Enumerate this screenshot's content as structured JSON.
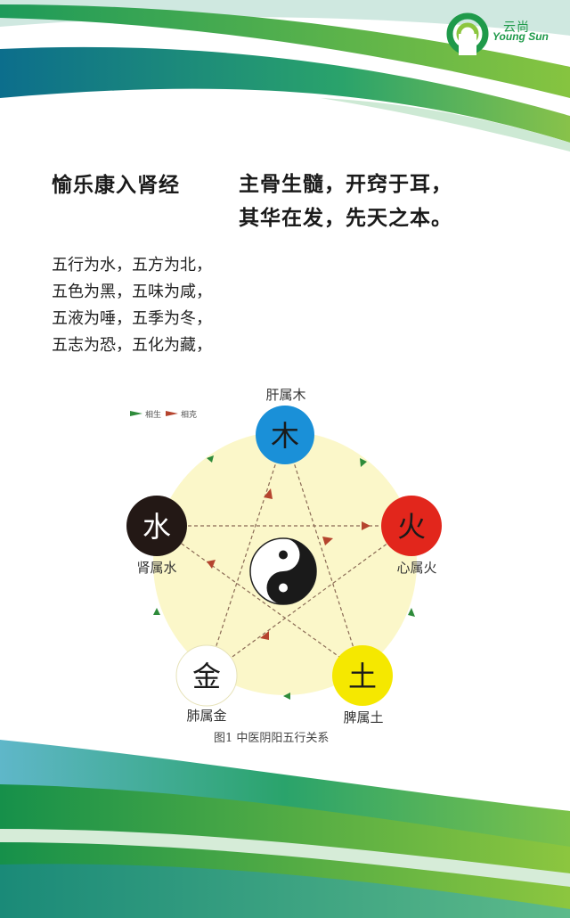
{
  "brand": {
    "name_cn": "云尚",
    "name_en": "Young Sun"
  },
  "title": {
    "left": "愉乐康入肾经",
    "right_lines": [
      "主骨生髓，开窍于耳，",
      "其华在发，先天之本。"
    ]
  },
  "body_lines": [
    "五行为水，五方为北，",
    "五色为黑，五味为咸，",
    "五液为唾，五季为冬，",
    "五志为恐，五化为藏，"
  ],
  "diagram": {
    "legend": {
      "generate": "相生",
      "restrain": "相克"
    },
    "legend_colors": {
      "generate": "#2e8b3a",
      "restrain": "#b5442e"
    },
    "elements": [
      {
        "char": "木",
        "label": "肝属木",
        "color": "#1a90d8",
        "text_color": "#1a1a1a"
      },
      {
        "char": "火",
        "label": "心属火",
        "color": "#e2261c",
        "text_color": "#1a1a1a"
      },
      {
        "char": "土",
        "label": "脾属土",
        "color": "#f5e800",
        "text_color": "#1a1a1a"
      },
      {
        "char": "金",
        "label": "肺属金",
        "color": "#ffffff",
        "text_color": "#1a1a1a"
      },
      {
        "char": "水",
        "label": "肾属水",
        "color": "#231815",
        "text_color": "#ffffff"
      }
    ],
    "circle_color": "#fbf7c9",
    "caption": "图1  中医阴阳五行关系"
  }
}
